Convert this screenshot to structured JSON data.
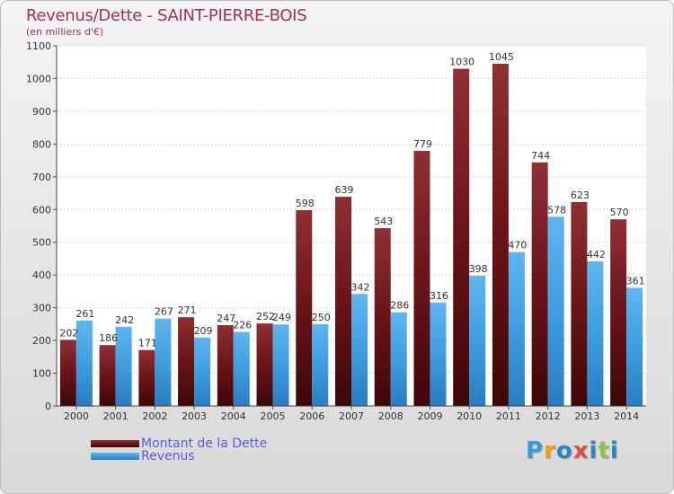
{
  "chart_data": {
    "type": "bar",
    "title": "Revenus/Dette - SAINT-PIERRE-BOIS",
    "subtitle": "(en milliers d'€)",
    "categories": [
      "2000",
      "2001",
      "2002",
      "2003",
      "2004",
      "2005",
      "2006",
      "2007",
      "2008",
      "2009",
      "2010",
      "2011",
      "2012",
      "2013",
      "2014"
    ],
    "series": [
      {
        "name": "Montant de la Dette",
        "color": "#7a1f22",
        "values": [
          202,
          186,
          171,
          271,
          247,
          252,
          598,
          639,
          543,
          779,
          1030,
          1045,
          744,
          623,
          570
        ]
      },
      {
        "name": "Revenus",
        "color": "#3e9ee0",
        "values": [
          261,
          242,
          267,
          209,
          226,
          249,
          250,
          342,
          286,
          316,
          398,
          470,
          578,
          442,
          361
        ]
      }
    ],
    "ylim": [
      0,
      1100
    ],
    "yticks": [
      0,
      100,
      200,
      300,
      400,
      500,
      600,
      700,
      800,
      900,
      1000,
      1100
    ],
    "grid": true,
    "legend": "bottom-left"
  },
  "brand": {
    "letters": [
      "P",
      "r",
      "o",
      "x",
      "i",
      "t",
      "i"
    ],
    "colors": [
      "#3a9ad9",
      "#f39c12",
      "#2e86c1",
      "#e74c3c",
      "#2e86c1",
      "#8bc34a",
      "#2e86c1"
    ]
  }
}
